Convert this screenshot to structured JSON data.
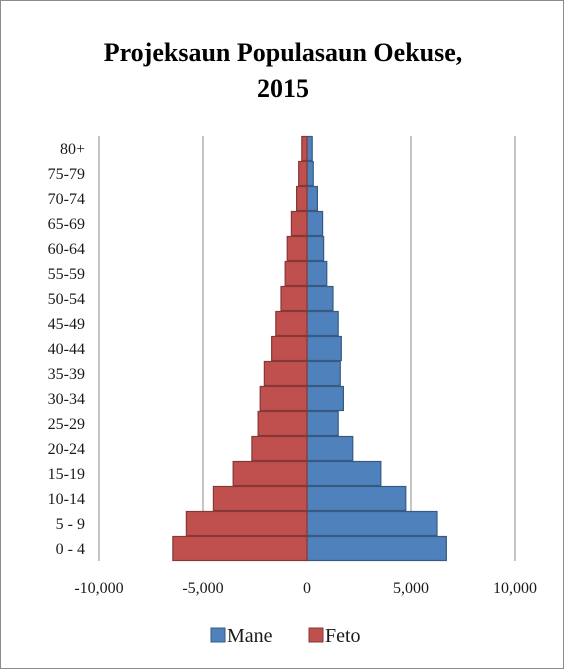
{
  "chart_data": {
    "type": "bar",
    "orientation": "horizontal",
    "title": "Projeksaun Populasaun Oekuse, 2015",
    "title_lines": [
      "Projeksaun Populasaun Oekuse,",
      "2015"
    ],
    "categories": [
      "80+",
      "75-79",
      "70-74",
      "65-69",
      "60-64",
      "55-59",
      "50-54",
      "45-49",
      "40-44",
      "35-39",
      "30-34",
      "25-29",
      "20-24",
      "15-19",
      "10-14",
      "5 - 9",
      "0 - 4"
    ],
    "series": [
      {
        "name": "Mane",
        "color": "#4f81bd",
        "values": [
          250,
          300,
          500,
          750,
          800,
          950,
          1250,
          1500,
          1650,
          1600,
          1750,
          1500,
          2200,
          3550,
          4750,
          6250,
          6700
        ]
      },
      {
        "name": "Feto",
        "color": "#c0504d",
        "values": [
          -250,
          -400,
          -500,
          -750,
          -950,
          -1050,
          -1250,
          -1500,
          -1700,
          -2050,
          -2250,
          -2350,
          -2650,
          -3550,
          -4500,
          -5800,
          -6450
        ]
      }
    ],
    "xlim": [
      -10000,
      10000
    ],
    "x_ticks": [
      -10000,
      -5000,
      0,
      5000,
      10000
    ],
    "x_tick_labels": [
      "-10,000",
      "-5,000",
      "0",
      "5,000",
      "10,000"
    ],
    "grid": "vertical",
    "legend_position": "bottom"
  }
}
